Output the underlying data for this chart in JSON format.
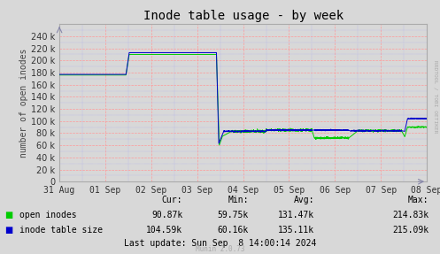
{
  "title": "Inode table usage - by week",
  "ylabel": "number of open inodes",
  "background_color": "#d8d8d8",
  "plot_bg_color": "#d8d8d8",
  "grid_color_major": "#ff9999",
  "grid_color_minor": "#9999ff",
  "ylim": [
    0,
    260000
  ],
  "yticks": [
    0,
    20000,
    40000,
    60000,
    80000,
    100000,
    120000,
    140000,
    160000,
    180000,
    200000,
    220000,
    240000
  ],
  "xlabels": [
    "31 Aug",
    "01 Sep",
    "02 Sep",
    "03 Sep",
    "04 Sep",
    "05 Sep",
    "06 Sep",
    "07 Sep",
    "08 Sep"
  ],
  "legend_labels": [
    "open inodes",
    "inode table size"
  ],
  "open_inodes_stats": [
    "90.87k",
    "59.75k",
    "131.47k",
    "214.83k"
  ],
  "inode_table_stats": [
    "104.59k",
    "60.16k",
    "135.11k",
    "215.09k"
  ],
  "last_update": "Last update: Sun Sep  8 14:00:14 2024",
  "munin_label": "Munin 2.0.73",
  "watermark": "RRDTOOL / TOBI OETIKER",
  "open_inodes_color": "#00cc00",
  "inode_table_color": "#0000cc",
  "title_fontsize": 10,
  "axis_fontsize": 7,
  "tick_fontsize": 7,
  "stats_fontsize": 7
}
